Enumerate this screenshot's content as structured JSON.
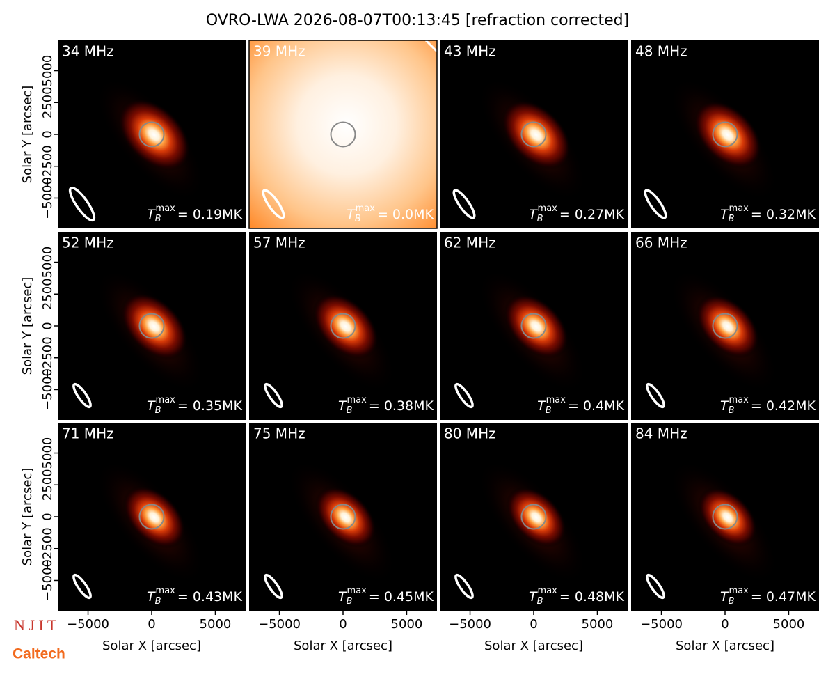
{
  "chart_data": {
    "type": "image-grid",
    "title": "OVRO-LWA 2026-08-07T00:13:45 [refraction corrected]",
    "xlabel": "Solar X [arcsec]",
    "ylabel": "Solar Y [arcsec]",
    "xlim": [
      -7380,
      7380
    ],
    "ylim": [
      -7380,
      7380
    ],
    "xticks": [
      {
        "value": -5000,
        "label": "−5000"
      },
      0,
      5000
    ],
    "yticks": [
      {
        "value": -5000,
        "label": "−5000"
      },
      {
        "value": -2500,
        "label": "−2500"
      },
      0,
      2500,
      5000
    ],
    "tb_symbol": "T",
    "tb_sub": "B",
    "tb_sup": "max",
    "panels": [
      {
        "label": "34 MHz",
        "tb_max": "= 0.19MK"
      },
      {
        "label": "39 MHz",
        "tb_max": "= 0.0MK",
        "saturated": true
      },
      {
        "label": "43 MHz",
        "tb_max": "= 0.27MK"
      },
      {
        "label": "48 MHz",
        "tb_max": "= 0.32MK"
      },
      {
        "label": "52 MHz",
        "tb_max": "= 0.35MK"
      },
      {
        "label": "57 MHz",
        "tb_max": "= 0.38MK"
      },
      {
        "label": "62 MHz",
        "tb_max": "= 0.4MK"
      },
      {
        "label": "66 MHz",
        "tb_max": "= 0.42MK"
      },
      {
        "label": "71 MHz",
        "tb_max": "= 0.43MK"
      },
      {
        "label": "75 MHz",
        "tb_max": "= 0.45MK"
      },
      {
        "label": "80 MHz",
        "tb_max": "= 0.48MK"
      },
      {
        "label": "84 MHz",
        "tb_max": "= 0.47MK"
      }
    ],
    "logos": [
      "N J I T",
      "Caltech"
    ]
  }
}
